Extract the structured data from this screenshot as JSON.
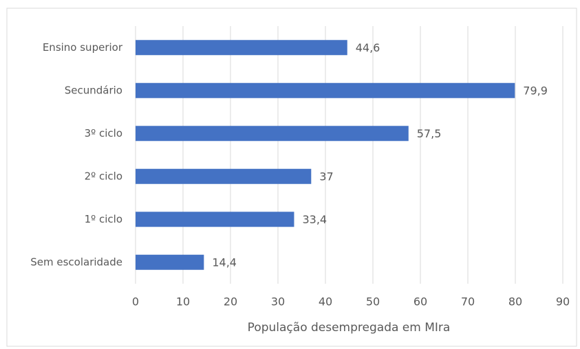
{
  "chart_data": {
    "type": "hbar",
    "categories": [
      "Ensino superior",
      "Secundário",
      "3º ciclo",
      "2º ciclo",
      "1º ciclo",
      "Sem escolaridade"
    ],
    "values": [
      44.6,
      79.9,
      57.5,
      37,
      33.4,
      14.4
    ],
    "value_labels": [
      "44,6",
      "79,9",
      "57,5",
      "37",
      "33,4",
      "14,4"
    ],
    "color": "#4472c4",
    "x_label": "População desempregada em MIra",
    "xlim": [
      0,
      90
    ],
    "xticks": [
      0,
      10,
      20,
      30,
      40,
      50,
      60,
      70,
      80,
      90
    ],
    "grid": true
  }
}
